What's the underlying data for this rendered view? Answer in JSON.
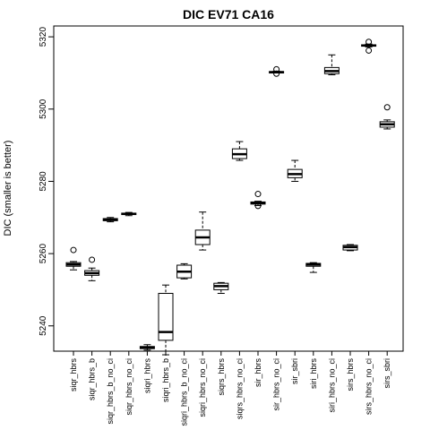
{
  "chart_data": {
    "type": "boxplot",
    "title": "DIC EV71 CA16",
    "xlabel": "",
    "ylabel": "DIC (smaller is better)",
    "ylim": [
      5233,
      5323
    ],
    "yticks": [
      5240,
      5260,
      5280,
      5300,
      5320
    ],
    "grid": false,
    "legend": "none",
    "categories": [
      "siqr_hbrs",
      "siqr_hbrs_b",
      "siqr_hbrs_b_no_ci",
      "siqr_hbrs_no_ci",
      "siqri_hbrs",
      "siqri_hbrs_b",
      "siqri_hbrs_b_no_ci",
      "siqri_hbrs_no_ci",
      "siqrs_hbrs",
      "siqrs_hbrs_no_ci",
      "sir_hbrs",
      "sir_hbrs_no_ci",
      "sir_sbri",
      "siri_hbrs",
      "siri_hbrs_no_ci",
      "sirs_hbrs",
      "sirs_hbrs_no_ci",
      "sirs_sbri"
    ],
    "boxes": [
      {
        "min": 5255.5,
        "q1": 5256.5,
        "median": 5257.0,
        "q3": 5257.5,
        "max": 5257.8,
        "outliers": [
          5261.0
        ]
      },
      {
        "min": 5252.5,
        "q1": 5254.0,
        "median": 5254.6,
        "q3": 5255.3,
        "max": 5256.0,
        "outliers": [
          5258.3
        ]
      },
      {
        "min": 5268.8,
        "q1": 5269.1,
        "median": 5269.4,
        "q3": 5269.7,
        "max": 5270.0,
        "outliers": []
      },
      {
        "min": 5270.5,
        "q1": 5270.8,
        "median": 5271.0,
        "q3": 5271.2,
        "max": 5271.4,
        "outliers": []
      },
      {
        "min": 5233.3,
        "q1": 5233.7,
        "median": 5234.0,
        "q3": 5234.3,
        "max": 5234.8,
        "outliers": []
      },
      {
        "min": 5232.0,
        "q1": 5236.0,
        "median": 5238.3,
        "q3": 5249.0,
        "max": 5251.3,
        "outliers": []
      },
      {
        "min": 5253.0,
        "q1": 5253.3,
        "median": 5255.0,
        "q3": 5256.8,
        "max": 5257.2,
        "outliers": []
      },
      {
        "min": 5261.0,
        "q1": 5262.5,
        "median": 5264.5,
        "q3": 5266.5,
        "max": 5271.5,
        "outliers": []
      },
      {
        "min": 5249.0,
        "q1": 5250.0,
        "median": 5251.0,
        "q3": 5251.8,
        "max": 5252.0,
        "outliers": []
      },
      {
        "min": 5285.8,
        "q1": 5286.3,
        "median": 5287.5,
        "q3": 5289.0,
        "max": 5291.0,
        "outliers": []
      },
      {
        "min": 5273.3,
        "q1": 5273.7,
        "median": 5274.0,
        "q3": 5274.3,
        "max": 5274.5,
        "outliers": [
          5276.5,
          5273.2
        ]
      },
      {
        "min": 5310.0,
        "q1": 5310.0,
        "median": 5310.2,
        "q3": 5310.4,
        "max": 5310.5,
        "outliers": [
          5311.0,
          5309.8
        ]
      },
      {
        "min": 5280.0,
        "q1": 5281.0,
        "median": 5282.0,
        "q3": 5283.3,
        "max": 5285.8,
        "outliers": []
      },
      {
        "min": 5254.8,
        "q1": 5256.5,
        "median": 5257.0,
        "q3": 5257.3,
        "max": 5257.5,
        "outliers": []
      },
      {
        "min": 5309.5,
        "q1": 5309.8,
        "median": 5310.5,
        "q3": 5311.5,
        "max": 5315.0,
        "outliers": []
      },
      {
        "min": 5260.8,
        "q1": 5261.0,
        "median": 5261.8,
        "q3": 5262.3,
        "max": 5262.5,
        "outliers": []
      },
      {
        "min": 5317.2,
        "q1": 5317.4,
        "median": 5317.6,
        "q3": 5317.8,
        "max": 5318.0,
        "outliers": [
          5318.6,
          5316.2
        ]
      },
      {
        "min": 5294.5,
        "q1": 5295.0,
        "median": 5295.8,
        "q3": 5296.5,
        "max": 5297.0,
        "outliers": [
          5300.5
        ]
      }
    ]
  }
}
